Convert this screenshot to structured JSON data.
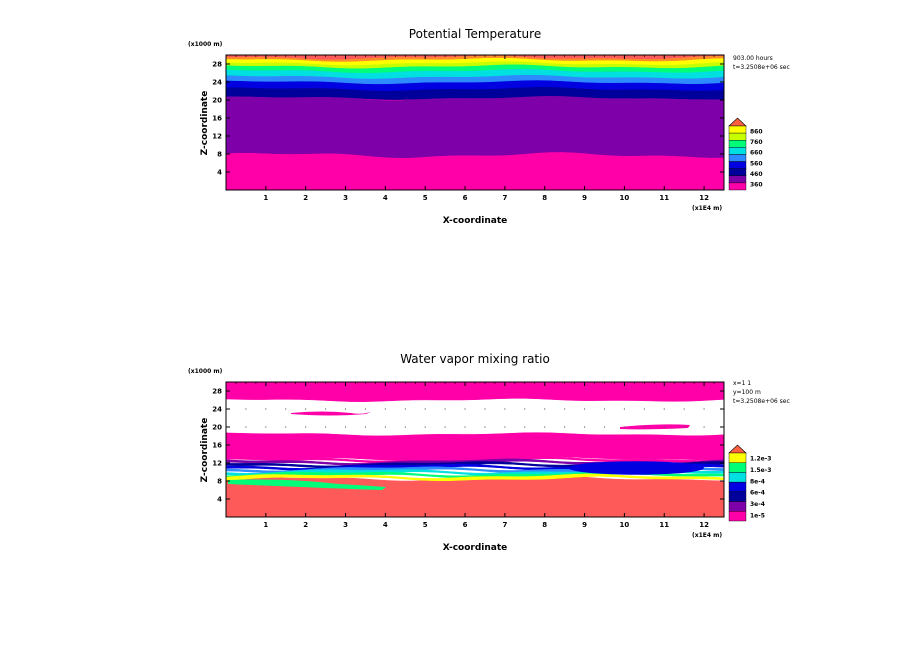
{
  "panels": [
    {
      "title": "Potential Temperature",
      "z_unit": "(x1000 m)",
      "x_unit": "(x1E4 m)",
      "xlabel": "X-coordinate",
      "ylabel": "Z-coordinate",
      "x_ticks": [
        "1",
        "2",
        "3",
        "4",
        "5",
        "6",
        "7",
        "8",
        "9",
        "10",
        "11",
        "12"
      ],
      "z_ticks": [
        "4",
        "8",
        "12",
        "16",
        "20",
        "24",
        "28"
      ],
      "info": [
        "903.00 hours",
        "t=3.2508e+06 sec"
      ],
      "legend": [
        "860",
        "760",
        "660",
        "560",
        "460",
        "360"
      ]
    },
    {
      "title": "Water vapor mixing ratio",
      "z_unit": "(x1000 m)",
      "x_unit": "(x1E4 m)",
      "xlabel": "X-coordinate",
      "ylabel": "Z-coordinate",
      "x_ticks": [
        "1",
        "2",
        "3",
        "4",
        "5",
        "6",
        "7",
        "8",
        "9",
        "10",
        "11",
        "12"
      ],
      "z_ticks": [
        "4",
        "8",
        "12",
        "16",
        "20",
        "24",
        "28"
      ],
      "info": [
        "x=1 1",
        "y=100 m",
        "t=3.2508e+06 sec"
      ],
      "legend": [
        "1.2e-3",
        "1.5e-3",
        "8e-4",
        "6e-4",
        "3e-4",
        "1e-5"
      ]
    }
  ],
  "colors": {
    "theta_bands": [
      "#ff00a8",
      "#7d00a8",
      "#00009a",
      "#0000e0",
      "#2e8bff",
      "#00e0e0",
      "#00ff78",
      "#c8ff00",
      "#ffff00",
      "#ff8c2a",
      "#ff5a5a"
    ],
    "theta_legend": [
      "#ff6040",
      "#ffff00",
      "#c8ff00",
      "#00ff78",
      "#00e0e0",
      "#2e8bff",
      "#0000e0",
      "#00009a",
      "#7d00a8",
      "#ff00a8"
    ],
    "qv_bands": [
      "#ff5a5a",
      "#ff00a8",
      "#ffffff",
      "#ff00a8"
    ],
    "qv_legend": [
      "#ff6040",
      "#ffff00",
      "#00ff78",
      "#00e0e0",
      "#0000e0",
      "#00009a",
      "#7d00a8",
      "#ff00a8"
    ]
  },
  "chart_data": [
    {
      "type": "heatmap",
      "title": "Potential Temperature",
      "xlabel": "X-coordinate",
      "ylabel": "Z-coordinate",
      "xlim": [
        0,
        12.5
      ],
      "ylim": [
        0,
        30
      ],
      "x_unit": "(x1E4 m)",
      "y_unit": "(x1000 m)",
      "legend_levels": [
        860,
        760,
        660,
        560,
        460,
        360
      ],
      "layers": [
        {
          "z_bottom": 0,
          "z_top": 7.8
        },
        {
          "z_bottom": 7.8,
          "z_top": 20.5
        },
        {
          "z_bottom": 20.5,
          "z_top": 22.5
        },
        {
          "z_bottom": 22.5,
          "z_top": 24.0
        },
        {
          "z_bottom": 24.0,
          "z_top": 25.2
        },
        {
          "z_bottom": 25.2,
          "z_top": 26.5
        },
        {
          "z_bottom": 26.5,
          "z_top": 27.5
        },
        {
          "z_bottom": 27.5,
          "z_top": 28.2
        },
        {
          "z_bottom": 28.2,
          "z_top": 29.0
        },
        {
          "z_bottom": 29.0,
          "z_top": 29.5
        },
        {
          "z_bottom": 29.5,
          "z_top": 30
        }
      ]
    },
    {
      "type": "heatmap",
      "title": "Water vapor mixing ratio",
      "xlabel": "X-coordinate",
      "ylabel": "Z-coordinate",
      "xlim": [
        0,
        12.5
      ],
      "ylim": [
        0,
        30
      ],
      "x_unit": "(x1E4 m)",
      "y_unit": "(x1000 m)",
      "legend_levels": [
        "1.2e-3",
        "1.5e-3",
        "8e-4",
        "6e-4",
        "3e-4",
        "1e-5"
      ],
      "layers": [
        {
          "z_bottom": 0,
          "z_top": 8.5
        },
        {
          "z_bottom": 13,
          "z_top": 18.5
        },
        {
          "z_bottom": 18.5,
          "z_top": 26
        },
        {
          "z_bottom": 26,
          "z_top": 30
        }
      ]
    }
  ]
}
